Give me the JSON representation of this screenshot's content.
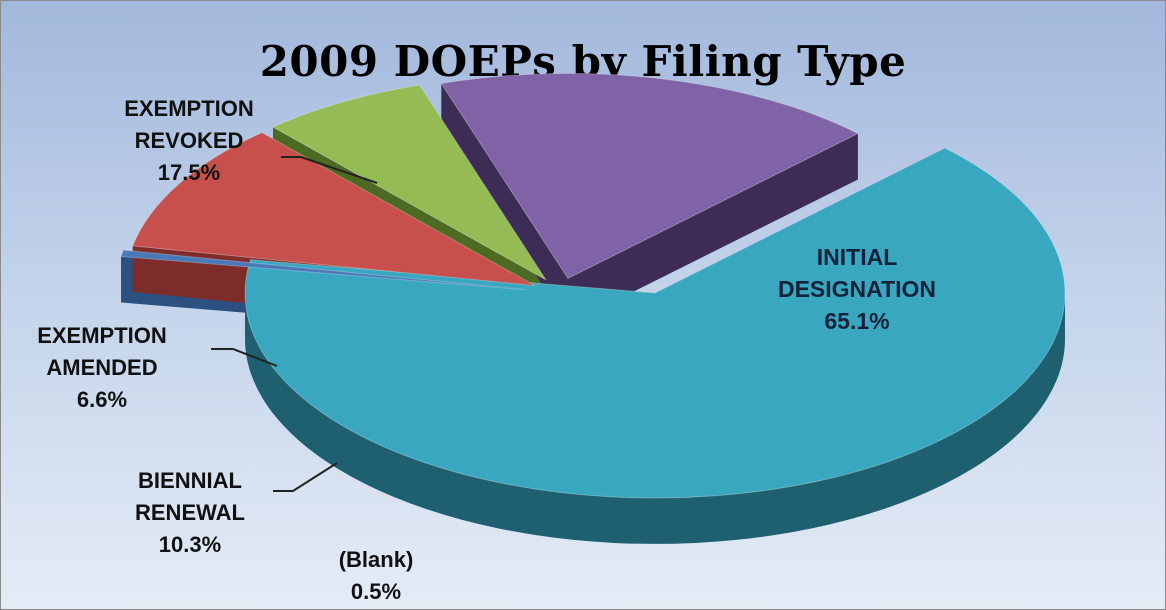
{
  "chart_data": {
    "type": "pie",
    "title": "2009 DOEPs by Filing Type",
    "slices": [
      {
        "label": [
          "INITIAL",
          "DESIGNATION"
        ],
        "value": 65.1,
        "display": "65.1%",
        "color": "#3aa7c0",
        "side": "#1f6070"
      },
      {
        "label": [
          "(Blank)"
        ],
        "value": 0.5,
        "display": "0.5%",
        "color": "#4a79b8",
        "side": "#2c5080"
      },
      {
        "label": [
          "BIENNIAL",
          "RENEWAL"
        ],
        "value": 10.3,
        "display": "10.3%",
        "color": "#c7504c",
        "side": "#7e2c2a"
      },
      {
        "label": [
          "EXEMPTION",
          "AMENDED"
        ],
        "value": 6.6,
        "display": "6.6%",
        "color": "#95bb55",
        "side": "#4d6a22"
      },
      {
        "label": [
          "EXEMPTION",
          "REVOKED"
        ],
        "value": 17.5,
        "display": "17.5%",
        "color": "#8063a6",
        "side": "#3d2c55"
      }
    ],
    "legend": "none",
    "three_d": true,
    "exploded": true
  }
}
